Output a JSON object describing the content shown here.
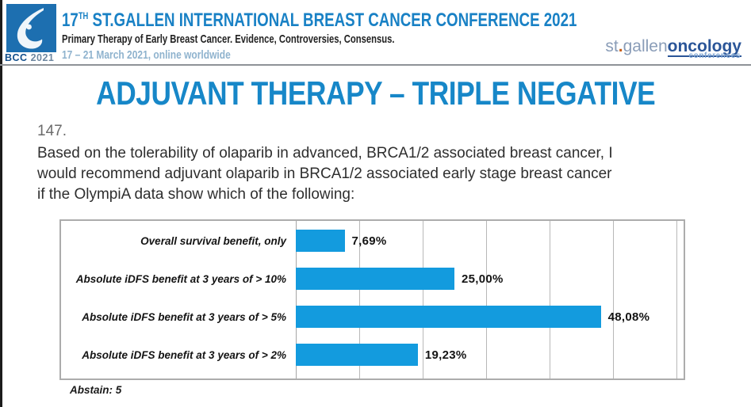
{
  "header": {
    "logo": {
      "bcc": "BCC",
      "year": "2021"
    },
    "title_num": "17",
    "title_sup": "TH",
    "title_rest": " ST.GALLEN INTERNATIONAL BREAST CANCER CONFERENCE 2021",
    "subtitle": "Primary Therapy of Early Breast Cancer. Evidence, Controversies, Consensus.",
    "dates": "17 – 21 March 2021, online worldwide",
    "right_logo": {
      "st": "st",
      "dot": ".",
      "gallen": "gallen",
      "oncology": "oncology",
      "conferences": "conferences"
    }
  },
  "main": {
    "title": "ADJUVANT THERAPY – TRIPLE NEGATIVE",
    "question_number": "147.",
    "question_lines": [
      "Based on the tolerability of olaparib in advanced, BRCA1/2 associated breast cancer, I",
      "would recommend adjuvant olaparib in BRCA1/2 associated early stage breast cancer",
      "if the OlympiA data show which of the following:"
    ],
    "abstain": "Abstain: 5"
  },
  "chart_data": {
    "type": "bar",
    "orientation": "horizontal",
    "title": "",
    "categories": [
      "Overall survival benefit, only",
      "Absolute iDFS benefit at 3 years of > 10%",
      "Absolute iDFS benefit at 3 years of > 5%",
      "Absolute iDFS benefit at 3 years of > 2%"
    ],
    "values": [
      7.69,
      25.0,
      48.08,
      19.23
    ],
    "value_labels": [
      "7,69%",
      "25,00%",
      "48,08%",
      "19,23%"
    ],
    "xlim": [
      0,
      60
    ],
    "gridline_step": 10,
    "grid": true,
    "legend": false,
    "bar_color": "#139bde"
  },
  "colors": {
    "accent_blue": "#1787c8",
    "bar_blue": "#139bde",
    "header_blue": "#1981c5",
    "date_blue": "#8fb3ce",
    "logo_square": "#1d6fb0"
  }
}
